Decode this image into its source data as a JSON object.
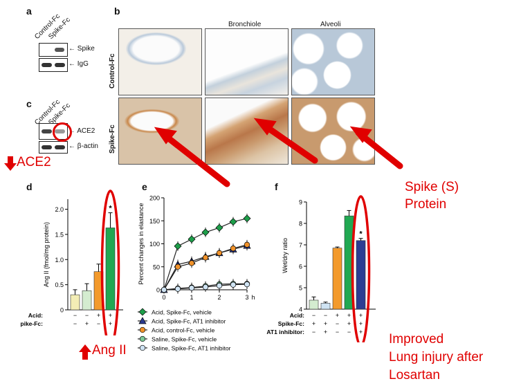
{
  "panels": {
    "a": {
      "label": "a",
      "lanes": [
        "Control-Fc",
        "Spike-Fc"
      ],
      "rows": [
        "Spike",
        "IgG"
      ]
    },
    "b": {
      "label": "b",
      "columns": [
        "Bronchiole",
        "Alveoli"
      ],
      "rows": [
        "Control-Fc",
        "Spike-Fc"
      ]
    },
    "c": {
      "label": "c",
      "lanes": [
        "Control-Fc",
        "Spike-Fc"
      ],
      "rows": [
        "ACE2",
        "β-actin"
      ]
    },
    "d": {
      "label": "d"
    },
    "e": {
      "label": "e"
    },
    "f": {
      "label": "f"
    }
  },
  "annotations": {
    "ace2_down": "ACE2",
    "angii_up": "Ang II",
    "spike_line1": "Spike (S)",
    "spike_line2": "Protein",
    "improved_line1": "Improved",
    "improved_line2": "Lung injury after",
    "improved_line3": "Losartan"
  },
  "colors": {
    "annotation_red": "#e00000"
  },
  "chart_data": [
    {
      "id": "d",
      "type": "bar",
      "ylabel": "Ang II (fmol/mg protein)",
      "ylim": [
        0,
        2.2
      ],
      "yticks": [
        "0",
        "0.5",
        "1.0",
        "1.5",
        "2.0"
      ],
      "categories": [
        "1",
        "2",
        "3",
        "4"
      ],
      "values": [
        0.3,
        0.38,
        0.76,
        1.63
      ],
      "errors": [
        0.1,
        0.14,
        0.15,
        0.3
      ],
      "colors": [
        "#f3edb5",
        "#d4ecd0",
        "#f39a2c",
        "#21a852"
      ],
      "significance": [
        "",
        "",
        "",
        "*"
      ],
      "conditions": [
        {
          "name": "Acid:",
          "marks": [
            "−",
            "−",
            "+",
            "+"
          ]
        },
        {
          "name": "Spike-Fc:",
          "marks": [
            "−",
            "+",
            "−",
            "+"
          ]
        }
      ]
    },
    {
      "id": "e",
      "type": "line",
      "ylabel": "Percent changes in elastance",
      "ylim": [
        0,
        200
      ],
      "yticks": [
        "0",
        "50",
        "100",
        "150",
        "200"
      ],
      "xlim": [
        0,
        3
      ],
      "xticks": [
        "0",
        "1",
        "2",
        "3"
      ],
      "xunit": "h",
      "x": [
        0,
        0.5,
        1,
        1.5,
        2,
        2.5,
        3
      ],
      "series": [
        {
          "name": "Acid, Spike-Fc, vehicle",
          "color": "#1e9e4a",
          "marker": "diamond",
          "values": [
            0,
            95,
            110,
            125,
            135,
            148,
            155
          ]
        },
        {
          "name": "Acid, Spike-Fc, AT1 inhibitor",
          "color": "#2a3a8f",
          "marker": "triangle",
          "values": [
            0,
            55,
            62,
            72,
            80,
            88,
            96
          ]
        },
        {
          "name": "Acid, control-Fc, vehicle",
          "color": "#f0922a",
          "marker": "circle",
          "values": [
            0,
            50,
            58,
            70,
            80,
            90,
            98
          ]
        },
        {
          "name": "Saline, Spike-Fc, vehicle",
          "color": "#7cc796",
          "marker": "circle",
          "values": [
            0,
            3,
            5,
            8,
            12,
            13,
            13
          ]
        },
        {
          "name": "Saline, Spike-Fc,  AT1 inhibitor",
          "color": "#cfe3f3",
          "marker": "circle",
          "values": [
            0,
            2,
            4,
            6,
            9,
            11,
            12
          ]
        }
      ]
    },
    {
      "id": "f",
      "type": "bar",
      "ylabel": "Wet/dry ratio",
      "ylim": [
        4,
        9
      ],
      "yticks": [
        "4",
        "5",
        "6",
        "7",
        "8",
        "9"
      ],
      "categories": [
        "1",
        "2",
        "3",
        "4",
        "5"
      ],
      "values": [
        4.42,
        4.28,
        6.85,
        8.35,
        7.2
      ],
      "errors": [
        0.15,
        0.05,
        0.05,
        0.25,
        0.1
      ],
      "colors": [
        "#d4ecd0",
        "#cfe3f3",
        "#f39a2c",
        "#21a852",
        "#2c3d93"
      ],
      "significance": [
        "",
        "",
        "",
        "",
        "*"
      ],
      "conditions": [
        {
          "name": "Acid:",
          "marks": [
            "−",
            "−",
            "+",
            "+",
            "+"
          ]
        },
        {
          "name": "Spike-Fc:",
          "marks": [
            "+",
            "+",
            "−",
            "+",
            "+"
          ]
        },
        {
          "name": "AT1 inhibitor:",
          "marks": [
            "−",
            "+",
            "−",
            "−",
            "+"
          ]
        }
      ]
    }
  ]
}
